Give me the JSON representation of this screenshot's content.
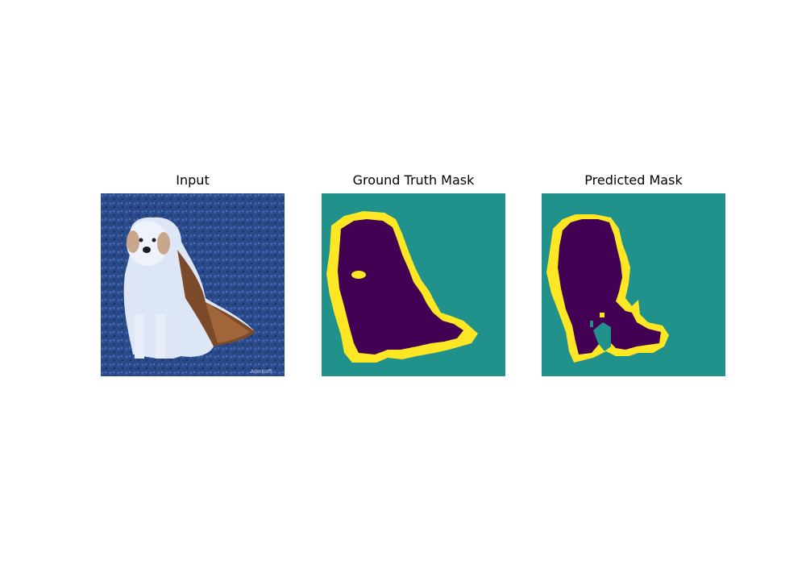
{
  "figure": {
    "panels": [
      {
        "title": "Input"
      },
      {
        "title": "Ground Truth Mask"
      },
      {
        "title": "Predicted Mask"
      }
    ]
  },
  "colors": {
    "background_class": "#21918c",
    "object_class": "#440154",
    "boundary_class": "#fde725",
    "photo_grass": "#2e4f8f",
    "photo_dog": "#dfe7f5"
  },
  "watermark": "AdmKoffi"
}
